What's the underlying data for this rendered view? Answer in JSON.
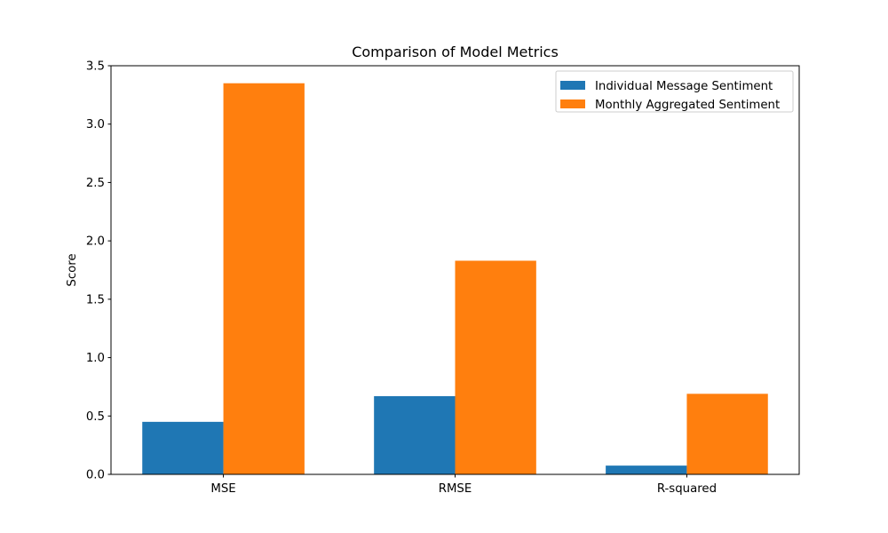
{
  "chart_data": {
    "type": "bar",
    "title": "Comparison of Model Metrics",
    "xlabel": "",
    "ylabel": "Score",
    "categories": [
      "MSE",
      "RMSE",
      "R-squared"
    ],
    "ylim": [
      0,
      3.5
    ],
    "yticks": [
      "0.0",
      "0.5",
      "1.0",
      "1.5",
      "2.0",
      "2.5",
      "3.0",
      "3.5"
    ],
    "grid": false,
    "legend_position": "top-right",
    "series": [
      {
        "name": "Individual Message Sentiment",
        "color": "#1f77b4",
        "values": [
          0.45,
          0.67,
          0.075
        ]
      },
      {
        "name": "Monthly Aggregated Sentiment",
        "color": "#ff7f0e",
        "values": [
          3.35,
          1.83,
          0.69
        ]
      }
    ]
  }
}
